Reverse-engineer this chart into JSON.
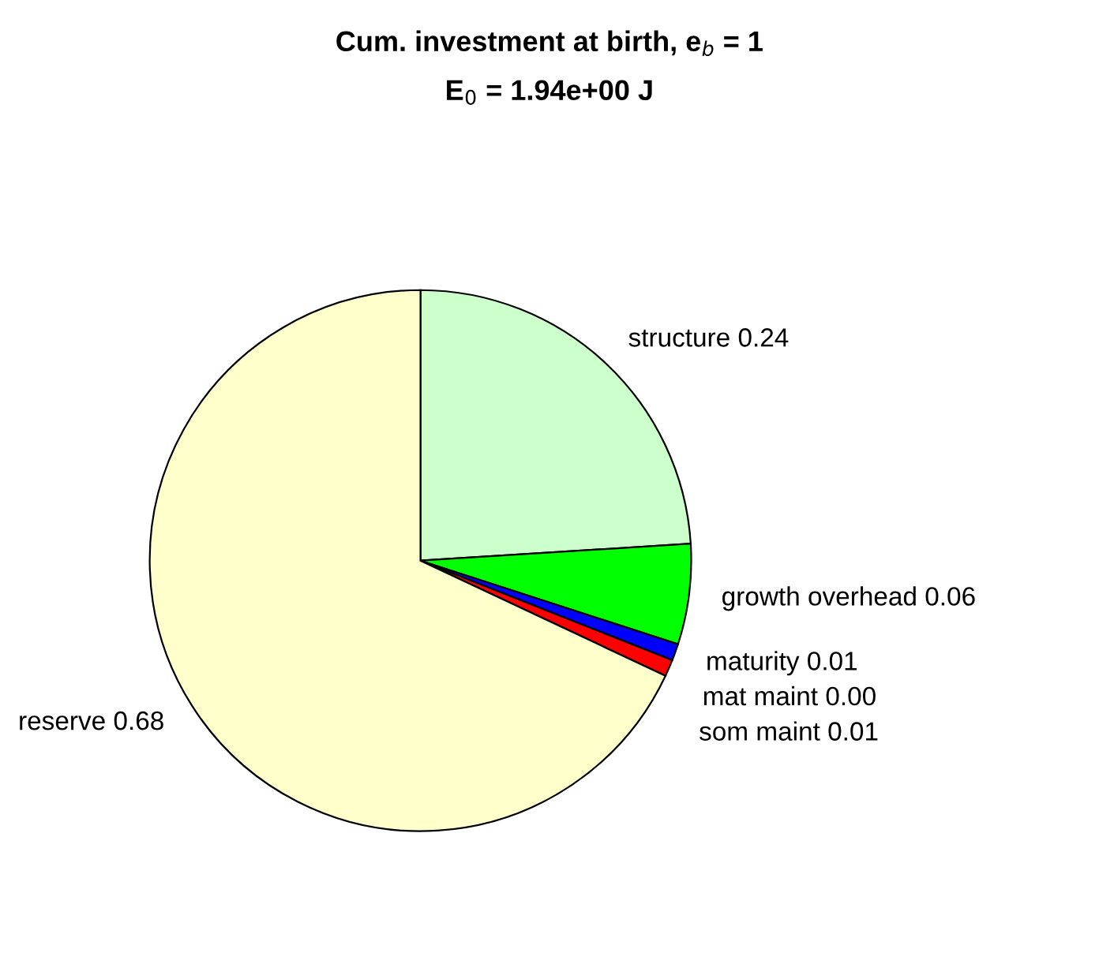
{
  "chart_data": {
    "type": "pie",
    "title": "Cum. investment at birth, e$_{b}$ = 1",
    "subtitle": "E$_{0}$ = 1.94e+00 J",
    "categories": [
      "structure",
      "growth overhead",
      "maturity",
      "mat maint",
      "som maint",
      "reserve"
    ],
    "values": [
      0.24,
      0.06,
      0.01,
      0.0,
      0.01,
      0.68
    ],
    "value_labels": [
      "0.24",
      "0.06",
      "0.01",
      "0.00",
      "0.01",
      "0.68"
    ],
    "colors": [
      "#ccffcc",
      "#00ff00",
      "#0000ff",
      "#000000",
      "#ff0000",
      "#ffffcc"
    ],
    "legend": false
  }
}
